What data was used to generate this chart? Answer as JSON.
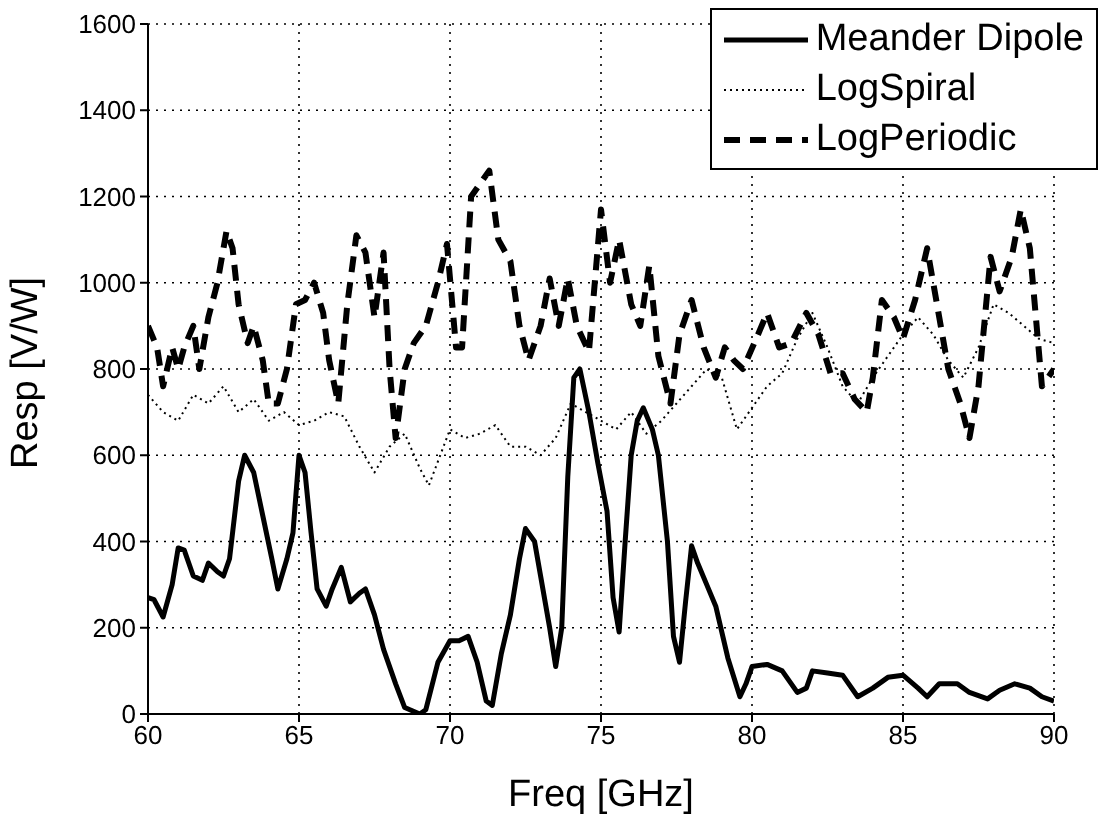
{
  "chart_data": {
    "type": "line",
    "xlabel": "Freq [GHz]",
    "ylabel": "Resp [V/W]",
    "xlim": [
      60,
      90
    ],
    "ylim": [
      0,
      1600
    ],
    "xticks": [
      60,
      65,
      70,
      75,
      80,
      85,
      90
    ],
    "yticks": [
      0,
      200,
      400,
      600,
      800,
      1000,
      1200,
      1400,
      1600
    ],
    "grid": true,
    "legend": "top right",
    "series": [
      {
        "name": "Meander Dipole",
        "color": "#000000",
        "line_style": "solid",
        "x": [
          60,
          60.2,
          60.5,
          60.8,
          61,
          61.2,
          61.5,
          61.8,
          62,
          62.3,
          62.5,
          62.7,
          63,
          63.2,
          63.5,
          63.8,
          64.1,
          64.3,
          64.6,
          64.8,
          65,
          65.2,
          65.4,
          65.6,
          65.9,
          66.1,
          66.4,
          66.7,
          67,
          67.2,
          67.5,
          67.8,
          68.2,
          68.5,
          69,
          69.2,
          69.6,
          70,
          70.3,
          70.6,
          70.9,
          71.2,
          71.4,
          71.7,
          72,
          72.3,
          72.5,
          72.8,
          73,
          73.3,
          73.5,
          73.7,
          73.9,
          74.1,
          74.3,
          74.6,
          74.9,
          75.2,
          75.4,
          75.6,
          75.8,
          76,
          76.2,
          76.4,
          76.7,
          76.9,
          77.2,
          77.4,
          77.6,
          77.8,
          78,
          78.2,
          78.5,
          78.8,
          79.2,
          79.6,
          79.8,
          80,
          80.5,
          81,
          81.5,
          81.8,
          82,
          82.5,
          83,
          83.5,
          84,
          84.5,
          85,
          85.5,
          85.8,
          86.2,
          86.8,
          87.2,
          87.8,
          88.2,
          88.7,
          89.2,
          89.6,
          90
        ],
        "values": [
          270,
          265,
          225,
          300,
          385,
          380,
          320,
          310,
          350,
          330,
          320,
          360,
          540,
          600,
          560,
          460,
          360,
          290,
          360,
          420,
          600,
          560,
          420,
          290,
          250,
          290,
          340,
          260,
          280,
          290,
          230,
          150,
          70,
          15,
          0,
          10,
          120,
          170,
          170,
          180,
          120,
          30,
          20,
          140,
          230,
          360,
          430,
          400,
          320,
          200,
          110,
          200,
          550,
          780,
          800,
          700,
          580,
          470,
          270,
          190,
          400,
          600,
          680,
          710,
          660,
          600,
          400,
          180,
          120,
          260,
          390,
          350,
          300,
          250,
          130,
          40,
          70,
          110,
          115,
          100,
          50,
          60,
          100,
          95,
          90,
          40,
          60,
          85,
          90,
          60,
          40,
          70,
          70,
          50,
          35,
          55,
          70,
          60,
          40,
          30
        ]
      },
      {
        "name": "LogSpiral",
        "color": "#000000",
        "line_style": "dotted",
        "x": [
          60,
          60.5,
          61,
          61.5,
          62,
          62.5,
          63,
          63.5,
          64,
          64.5,
          65,
          65.5,
          66,
          66.5,
          67,
          67.5,
          68,
          68.5,
          69,
          69.3,
          70,
          70.5,
          71,
          71.5,
          72,
          72.5,
          73,
          73.5,
          74,
          74.5,
          75,
          75.5,
          76,
          76.5,
          77,
          77.5,
          78,
          78.5,
          79,
          79.5,
          80,
          80.5,
          81,
          81.5,
          82,
          82.5,
          83,
          83.5,
          84,
          84.5,
          85,
          85.5,
          86,
          86.5,
          87,
          87.5,
          88,
          88.5,
          89,
          89.5,
          90
        ],
        "values": [
          740,
          700,
          680,
          740,
          720,
          760,
          700,
          730,
          680,
          700,
          670,
          680,
          700,
          690,
          620,
          560,
          620,
          650,
          570,
          530,
          660,
          640,
          650,
          670,
          620,
          620,
          600,
          640,
          720,
          700,
          680,
          660,
          700,
          650,
          680,
          720,
          760,
          800,
          780,
          660,
          710,
          760,
          790,
          870,
          930,
          850,
          760,
          720,
          780,
          830,
          880,
          920,
          880,
          820,
          780,
          850,
          950,
          930,
          900,
          870,
          860
        ]
      },
      {
        "name": "LogPeriodic",
        "color": "#000000",
        "line_style": "dashed",
        "x": [
          60,
          60.3,
          60.5,
          60.8,
          61,
          61.2,
          61.5,
          61.7,
          62,
          62.3,
          62.6,
          62.8,
          63,
          63.3,
          63.5,
          63.8,
          64,
          64.3,
          64.6,
          64.9,
          65.2,
          65.5,
          65.8,
          66,
          66.3,
          66.6,
          66.9,
          67.2,
          67.5,
          67.8,
          68,
          68.2,
          68.5,
          68.8,
          69.2,
          69.6,
          69.9,
          70.2,
          70.4,
          70.7,
          71,
          71.3,
          71.6,
          72,
          72.3,
          72.6,
          73,
          73.3,
          73.6,
          73.9,
          74.2,
          74.6,
          75,
          75.3,
          75.6,
          76,
          76.3,
          76.6,
          76.9,
          77.3,
          77.6,
          78,
          78.4,
          78.8,
          79.1,
          79.4,
          79.7,
          80.2,
          80.5,
          80.9,
          81.3,
          81.8,
          82.2,
          82.6,
          83,
          83.4,
          83.8,
          84,
          84.3,
          84.7,
          85,
          85.4,
          85.8,
          86.2,
          86.5,
          86.9,
          87.2,
          87.5,
          87.9,
          88.2,
          88.6,
          88.9,
          89.2,
          89.6,
          90
        ],
        "values": [
          900,
          850,
          760,
          850,
          800,
          850,
          900,
          800,
          920,
          1000,
          1120,
          1080,
          950,
          860,
          900,
          820,
          720,
          720,
          800,
          950,
          960,
          1000,
          930,
          820,
          720,
          950,
          1110,
          1070,
          920,
          1070,
          800,
          640,
          800,
          860,
          900,
          1000,
          1090,
          850,
          850,
          1200,
          1230,
          1260,
          1100,
          1050,
          900,
          820,
          900,
          1010,
          900,
          1010,
          900,
          840,
          1170,
          1000,
          1100,
          950,
          900,
          1040,
          830,
          720,
          880,
          960,
          850,
          780,
          850,
          820,
          800,
          880,
          930,
          850,
          860,
          930,
          880,
          790,
          790,
          730,
          700,
          780,
          960,
          920,
          870,
          960,
          1080,
          920,
          800,
          720,
          640,
          760,
          1060,
          980,
          1060,
          1170,
          1080,
          760,
          800
        ]
      }
    ]
  }
}
